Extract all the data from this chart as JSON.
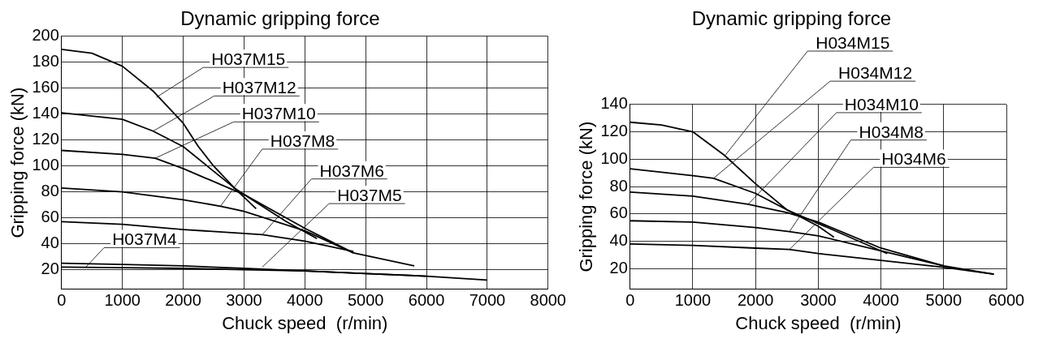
{
  "chart_data": [
    {
      "type": "line",
      "title": "Dynamic gripping force",
      "xlabel": "Chuck speed  (r/min)",
      "ylabel": "Gripping force (kN)",
      "xlim": [
        0,
        8000
      ],
      "xticks": [
        0,
        1000,
        2000,
        3000,
        4000,
        5000,
        6000,
        7000,
        8000
      ],
      "ylim": [
        5,
        200
      ],
      "yticks": [
        20,
        40,
        60,
        80,
        100,
        120,
        140,
        160,
        180,
        200
      ],
      "grid": true,
      "legend": false,
      "marker": "none",
      "line_style": "solid",
      "color": "#000000",
      "series": [
        {
          "x": [
            0,
            500,
            1000,
            1500,
            2000,
            2250,
            2500,
            2843,
            3200
          ],
          "values": [
            190,
            187,
            177,
            158,
            133,
            115,
            100,
            83,
            67
          ]
        },
        {
          "x": [
            0,
            1000,
            1500,
            2000,
            2500,
            2843,
            3200,
            3700,
            4200
          ],
          "values": [
            141,
            136,
            127,
            115,
            96,
            83,
            72,
            57,
            44
          ]
        },
        {
          "x": [
            0,
            1000,
            1540,
            2000,
            3000,
            4000,
            4800,
            5800
          ],
          "values": [
            112,
            109,
            106,
            98,
            78,
            52,
            33,
            23
          ]
        },
        {
          "x": [
            0,
            1000,
            2000,
            2614,
            3000,
            4000,
            4800
          ],
          "values": [
            83,
            80,
            74,
            69,
            65,
            50,
            33
          ]
        },
        {
          "x": [
            0,
            1000,
            2000,
            3000,
            3300,
            4000,
            4800
          ],
          "values": [
            57,
            55,
            51,
            48,
            47,
            42,
            34
          ]
        },
        {
          "x": [
            0,
            1000,
            2000,
            3000,
            4000,
            5000,
            6000,
            7000
          ],
          "values": [
            25,
            24,
            23,
            21,
            19,
            17,
            15,
            12
          ]
        },
        {
          "x": [
            0,
            1000,
            2000,
            3000,
            4000,
            5000,
            6000
          ],
          "values": [
            22,
            21.5,
            21,
            20,
            19,
            17,
            15
          ]
        }
      ],
      "annotations": [
        {
          "text": "H037M15",
          "x": 1560,
          "y": 153
        },
        {
          "text": "H037M12",
          "x": 1510,
          "y": 127
        },
        {
          "text": "H037M10",
          "x": 1540,
          "y": 106
        },
        {
          "text": "H037M8",
          "x": 2614,
          "y": 69
        },
        {
          "text": "H037M6",
          "x": 3300,
          "y": 47
        },
        {
          "text": "H037M5",
          "x": 3300,
          "y": 22
        },
        {
          "text": "H037M4",
          "x": 400,
          "y": 22
        }
      ]
    },
    {
      "type": "line",
      "title": "Dynamic gripping force",
      "xlabel": "Chuck speed  (r/min)",
      "ylabel": "Gripping force (kN)",
      "xlim": [
        0,
        6000
      ],
      "xticks": [
        0,
        1000,
        2000,
        3000,
        4000,
        5000,
        6000
      ],
      "ylim": [
        5,
        140
      ],
      "yticks": [
        20,
        40,
        60,
        80,
        100,
        120,
        140
      ],
      "grid": true,
      "legend": false,
      "marker": "none",
      "line_style": "solid",
      "color": "#000000",
      "series": [
        {
          "x": [
            0,
            500,
            1000,
            1500,
            2000,
            2500,
            3000,
            3250
          ],
          "values": [
            127,
            125,
            120,
            103,
            82,
            63,
            51,
            43
          ]
        },
        {
          "x": [
            0,
            1000,
            1330,
            2000,
            2500,
            3000,
            4100
          ],
          "values": [
            93,
            88,
            86,
            75,
            63,
            53,
            31
          ]
        },
        {
          "x": [
            0,
            1000,
            1880,
            2500,
            3000,
            4000,
            5000,
            5800
          ],
          "values": [
            76,
            73,
            67,
            61,
            54,
            35,
            22,
            16
          ]
        },
        {
          "x": [
            0,
            1000,
            2000,
            2540,
            3000,
            4000,
            5000
          ],
          "values": [
            55,
            54,
            50,
            47,
            44,
            33,
            22
          ]
        },
        {
          "x": [
            0,
            1000,
            2000,
            2540,
            3000,
            4000,
            5000,
            5800
          ],
          "values": [
            38,
            37,
            35,
            34,
            31,
            26,
            21,
            16
          ]
        }
      ],
      "annotations": [
        {
          "text": "H034M15",
          "x": 1520,
          "y": 103
        },
        {
          "text": "H034M12",
          "x": 1330,
          "y": 86
        },
        {
          "text": "H034M10",
          "x": 1880,
          "y": 67
        },
        {
          "text": "H034M8",
          "x": 2540,
          "y": 47
        },
        {
          "text": "H034M6",
          "x": 2540,
          "y": 34
        }
      ]
    }
  ]
}
